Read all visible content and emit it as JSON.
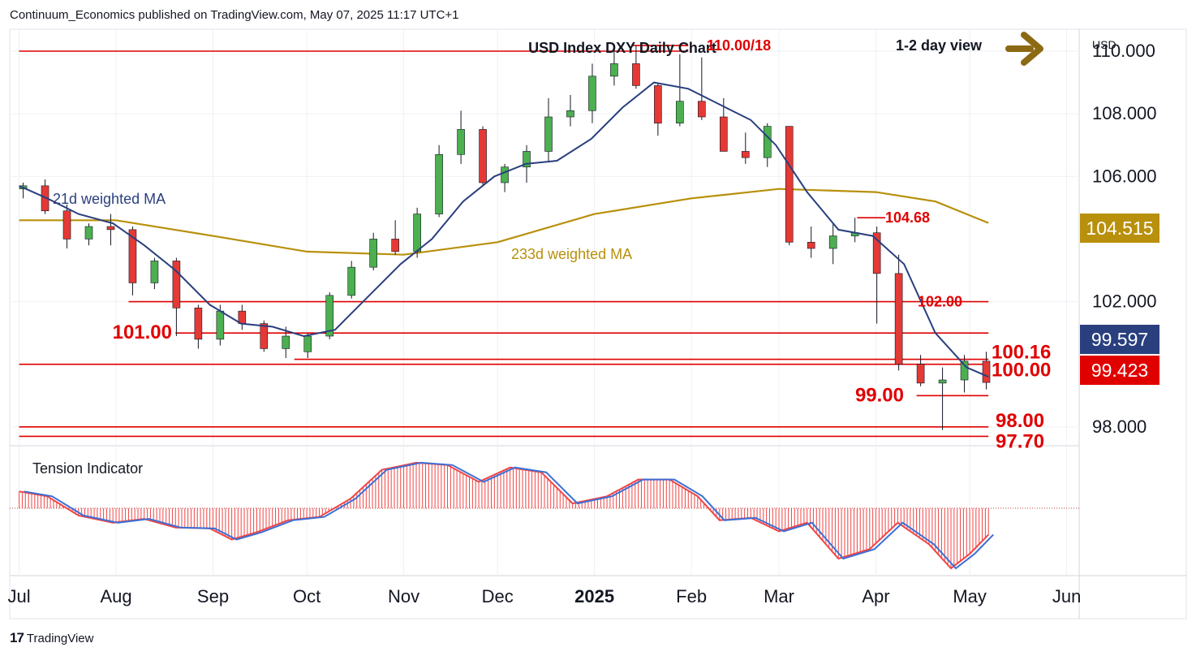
{
  "header": {
    "publisher": "Continuum_Economics published on TradingView.com, May 07, 2025 11:17 UTC+1"
  },
  "footer": {
    "brand": "TradingView"
  },
  "colors": {
    "up": "#4caf50",
    "down": "#e53935",
    "wick": "#131722",
    "ma21": "#2a3f7e",
    "ma233": "#b8900b",
    "level": "#e00000",
    "arrow": "#8c6a14",
    "tension_blue": "#3c6fd6",
    "tension_red": "#f04545"
  },
  "chart_data": {
    "type": "candlestick",
    "title": "USD Index DXY Daily Chart",
    "view_label": "1-2 day view",
    "view_direction": "right",
    "currency_label": "USD",
    "ylim": [
      97.4,
      110.7
    ],
    "yticks": [
      98,
      102,
      106,
      108,
      110
    ],
    "ytick_labels": [
      "98.000",
      "102.000",
      "106.000",
      "108.000",
      "110.000"
    ],
    "x_months": [
      "Jul",
      "Aug",
      "Sep",
      "Oct",
      "Nov",
      "Dec",
      "2025",
      "Feb",
      "Mar",
      "Apr",
      "May",
      "Jun"
    ],
    "x_month_bold": [
      false,
      false,
      false,
      false,
      false,
      false,
      true,
      false,
      false,
      false,
      false,
      false
    ],
    "x_month_dates": [
      "2024-07-01",
      "2024-08-01",
      "2024-09-01",
      "2024-10-01",
      "2024-11-01",
      "2024-12-01",
      "2025-01-01",
      "2025-02-01",
      "2025-03-01",
      "2025-04-01",
      "2025-05-01",
      "2025-06-01"
    ],
    "x_start": "2024-07-01",
    "x_end": "2025-06-05",
    "price_labels": [
      {
        "value": 104.515,
        "text": "104.515",
        "bg": "#b8900b",
        "fg": "#ffffff"
      },
      {
        "value": 99.597,
        "text": "99.597",
        "bg": "#2a3f7e",
        "fg": "#ffffff"
      },
      {
        "value": 99.423,
        "text": "99.423",
        "bg": "#e00000",
        "fg": "#ffffff"
      }
    ],
    "levels": [
      {
        "value": 110.0,
        "start": "2024-07-01",
        "end": "2025-01-31"
      },
      {
        "value": 110.18,
        "start": "2025-01-13",
        "end": "2025-01-31",
        "label": "110.00/18"
      },
      {
        "value": 104.68,
        "start": "2025-03-26",
        "end": "2025-04-04",
        "label": "104.68"
      },
      {
        "value": 102.0,
        "start": "2024-08-05",
        "end": "2025-05-07",
        "label": "102.00"
      },
      {
        "value": 101.0,
        "start": "2024-08-20",
        "end": "2025-05-07",
        "label": "101.00"
      },
      {
        "value": 100.16,
        "start": "2024-09-27",
        "end": "2025-05-07",
        "label": "100.16"
      },
      {
        "value": 100.0,
        "start": "2024-07-01",
        "end": "2025-05-07",
        "label": "100.00"
      },
      {
        "value": 99.0,
        "start": "2025-04-14",
        "end": "2025-05-07",
        "label": "99.00"
      },
      {
        "value": 98.0,
        "start": "2024-07-01",
        "end": "2025-05-07",
        "label": "98.00"
      },
      {
        "value": 97.7,
        "start": "2024-07-01",
        "end": "2025-05-07",
        "label": "97.70"
      }
    ],
    "series": [
      {
        "name": "21d weighted MA",
        "points": [
          [
            "2024-07-01",
            105.7
          ],
          [
            "2024-07-10",
            105.3
          ],
          [
            "2024-07-20",
            104.8
          ],
          [
            "2024-07-31",
            104.5
          ],
          [
            "2024-08-10",
            103.8
          ],
          [
            "2024-08-20",
            103.0
          ],
          [
            "2024-08-31",
            101.9
          ],
          [
            "2024-09-10",
            101.3
          ],
          [
            "2024-09-20",
            101.2
          ],
          [
            "2024-09-30",
            100.9
          ],
          [
            "2024-10-10",
            101.1
          ],
          [
            "2024-10-20",
            102.1
          ],
          [
            "2024-10-31",
            103.2
          ],
          [
            "2024-11-10",
            104.0
          ],
          [
            "2024-11-20",
            105.2
          ],
          [
            "2024-11-30",
            106.0
          ],
          [
            "2024-12-10",
            106.4
          ],
          [
            "2024-12-20",
            106.5
          ],
          [
            "2024-12-31",
            107.2
          ],
          [
            "2025-01-10",
            108.2
          ],
          [
            "2025-01-20",
            109.0
          ],
          [
            "2025-01-31",
            108.8
          ],
          [
            "2025-02-10",
            108.3
          ],
          [
            "2025-02-20",
            107.8
          ],
          [
            "2025-02-28",
            107.0
          ],
          [
            "2025-03-10",
            105.5
          ],
          [
            "2025-03-20",
            104.3
          ],
          [
            "2025-03-31",
            104.1
          ],
          [
            "2025-04-10",
            103.2
          ],
          [
            "2025-04-20",
            101.0
          ],
          [
            "2025-04-30",
            99.9
          ],
          [
            "2025-05-07",
            99.6
          ]
        ]
      },
      {
        "name": "233d weighted MA",
        "points": [
          [
            "2024-07-01",
            104.6
          ],
          [
            "2024-08-01",
            104.6
          ],
          [
            "2024-09-01",
            104.1
          ],
          [
            "2024-10-01",
            103.6
          ],
          [
            "2024-11-01",
            103.5
          ],
          [
            "2024-12-01",
            103.9
          ],
          [
            "2025-01-01",
            104.8
          ],
          [
            "2025-02-01",
            105.3
          ],
          [
            "2025-03-01",
            105.6
          ],
          [
            "2025-04-01",
            105.5
          ],
          [
            "2025-04-20",
            105.2
          ],
          [
            "2025-05-07",
            104.515
          ]
        ]
      }
    ],
    "candles_ohlc": [
      [
        "2024-07-01",
        105.6,
        105.8,
        105.3,
        105.7
      ],
      [
        "2024-07-08",
        105.7,
        105.9,
        104.8,
        104.9
      ],
      [
        "2024-07-15",
        104.9,
        105.1,
        103.7,
        104.0
      ],
      [
        "2024-07-22",
        104.0,
        104.5,
        103.8,
        104.4
      ],
      [
        "2024-07-29",
        104.4,
        104.8,
        103.8,
        104.3
      ],
      [
        "2024-08-05",
        104.3,
        104.4,
        102.2,
        102.6
      ],
      [
        "2024-08-12",
        102.6,
        103.4,
        102.4,
        103.3
      ],
      [
        "2024-08-19",
        103.3,
        103.4,
        100.9,
        101.8
      ],
      [
        "2024-08-26",
        101.8,
        101.9,
        100.5,
        100.8
      ],
      [
        "2024-09-02",
        100.8,
        101.9,
        100.6,
        101.7
      ],
      [
        "2024-09-09",
        101.7,
        101.9,
        101.1,
        101.3
      ],
      [
        "2024-09-16",
        101.3,
        101.4,
        100.4,
        100.5
      ],
      [
        "2024-09-23",
        100.5,
        101.2,
        100.2,
        100.9
      ],
      [
        "2024-09-30",
        100.4,
        101.0,
        100.2,
        100.9
      ],
      [
        "2024-10-07",
        100.9,
        102.3,
        100.8,
        102.2
      ],
      [
        "2024-10-14",
        102.2,
        103.3,
        102.1,
        103.1
      ],
      [
        "2024-10-21",
        103.1,
        104.2,
        103.0,
        104.0
      ],
      [
        "2024-10-28",
        104.0,
        104.6,
        103.5,
        103.6
      ],
      [
        "2024-11-04",
        103.6,
        105.0,
        103.4,
        104.8
      ],
      [
        "2024-11-11",
        104.8,
        107.0,
        104.7,
        106.7
      ],
      [
        "2024-11-18",
        106.7,
        108.1,
        106.4,
        107.5
      ],
      [
        "2024-11-25",
        107.5,
        107.6,
        105.7,
        105.8
      ],
      [
        "2024-12-02",
        105.8,
        106.4,
        105.5,
        106.3
      ],
      [
        "2024-12-09",
        106.3,
        107.0,
        105.8,
        106.8
      ],
      [
        "2024-12-16",
        106.8,
        108.5,
        106.5,
        107.9
      ],
      [
        "2024-12-23",
        107.9,
        108.6,
        107.6,
        108.1
      ],
      [
        "2024-12-30",
        108.1,
        109.6,
        107.7,
        109.2
      ],
      [
        "2025-01-06",
        109.2,
        110.2,
        108.9,
        109.6
      ],
      [
        "2025-01-13",
        109.6,
        110.18,
        108.8,
        108.9
      ],
      [
        "2025-01-20",
        108.9,
        109.0,
        107.3,
        107.7
      ],
      [
        "2025-01-27",
        107.7,
        109.9,
        107.6,
        108.4
      ],
      [
        "2025-02-03",
        108.4,
        109.8,
        107.8,
        107.9
      ],
      [
        "2025-02-10",
        107.9,
        108.5,
        106.8,
        106.8
      ],
      [
        "2025-02-17",
        106.8,
        107.4,
        106.4,
        106.6
      ],
      [
        "2025-02-24",
        106.6,
        107.7,
        106.3,
        107.6
      ],
      [
        "2025-03-03",
        107.6,
        107.6,
        103.8,
        103.9
      ],
      [
        "2025-03-10",
        103.9,
        104.4,
        103.4,
        103.7
      ],
      [
        "2025-03-17",
        103.7,
        104.5,
        103.2,
        104.1
      ],
      [
        "2025-03-24",
        104.1,
        104.68,
        103.9,
        104.2
      ],
      [
        "2025-03-31",
        104.2,
        104.4,
        101.3,
        102.9
      ],
      [
        "2025-04-07",
        102.9,
        103.5,
        99.8,
        100.0
      ],
      [
        "2025-04-14",
        100.0,
        100.3,
        99.3,
        99.4
      ],
      [
        "2025-04-21",
        99.4,
        99.9,
        97.9,
        99.5
      ],
      [
        "2025-04-28",
        99.5,
        100.3,
        99.1,
        100.1
      ],
      [
        "2025-05-05",
        100.1,
        100.4,
        99.2,
        99.42
      ]
    ],
    "tension_indicator": {
      "title": "Tension Indicator",
      "zero": 0,
      "ylim": [
        -1.2,
        1.1
      ],
      "points": [
        [
          "2024-07-01",
          0.35
        ],
        [
          "2024-07-10",
          0.25
        ],
        [
          "2024-07-20",
          -0.15
        ],
        [
          "2024-07-31",
          -0.3
        ],
        [
          "2024-08-10",
          -0.22
        ],
        [
          "2024-08-20",
          -0.4
        ],
        [
          "2024-08-31",
          -0.42
        ],
        [
          "2024-09-07",
          -0.65
        ],
        [
          "2024-09-15",
          -0.5
        ],
        [
          "2024-09-25",
          -0.25
        ],
        [
          "2024-10-05",
          -0.18
        ],
        [
          "2024-10-15",
          0.2
        ],
        [
          "2024-10-25",
          0.8
        ],
        [
          "2024-11-05",
          0.95
        ],
        [
          "2024-11-15",
          0.9
        ],
        [
          "2024-11-25",
          0.55
        ],
        [
          "2024-12-05",
          0.85
        ],
        [
          "2024-12-15",
          0.75
        ],
        [
          "2024-12-25",
          0.1
        ],
        [
          "2025-01-05",
          0.25
        ],
        [
          "2025-01-15",
          0.6
        ],
        [
          "2025-01-25",
          0.6
        ],
        [
          "2025-02-03",
          0.25
        ],
        [
          "2025-02-10",
          -0.25
        ],
        [
          "2025-02-20",
          -0.2
        ],
        [
          "2025-03-01",
          -0.48
        ],
        [
          "2025-03-10",
          -0.3
        ],
        [
          "2025-03-20",
          -1.05
        ],
        [
          "2025-03-30",
          -0.85
        ],
        [
          "2025-04-08",
          -0.3
        ],
        [
          "2025-04-18",
          -0.75
        ],
        [
          "2025-04-25",
          -1.25
        ],
        [
          "2025-05-01",
          -0.95
        ],
        [
          "2025-05-07",
          -0.55
        ]
      ]
    }
  }
}
